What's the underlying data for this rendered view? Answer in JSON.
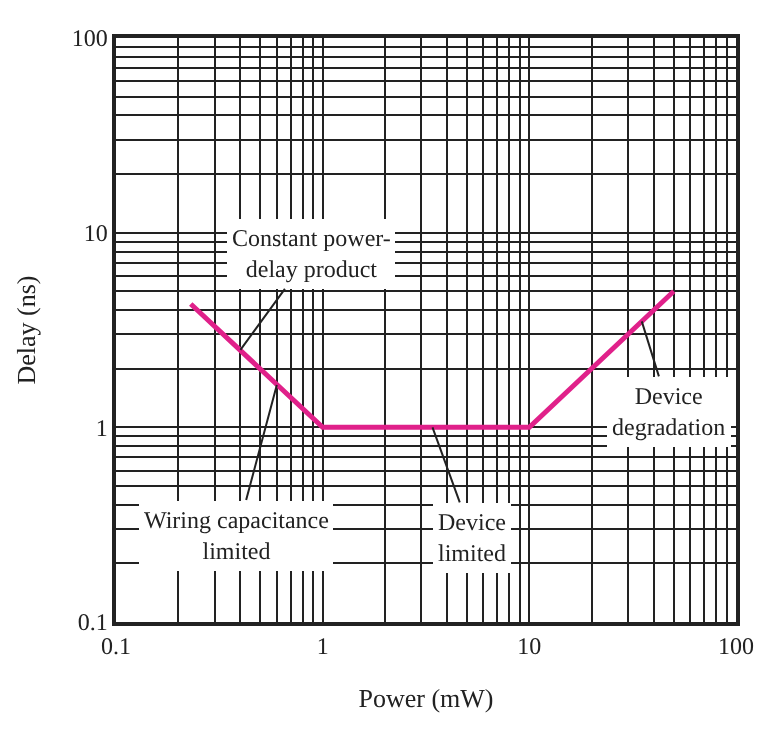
{
  "chart_data": {
    "type": "line",
    "xlabel": "Power (mW)",
    "ylabel": "Delay (ns)",
    "x": [
      0.23,
      1,
      10,
      50
    ],
    "series": [
      {
        "color": "#e0218a",
        "values": [
          4.3,
          1,
          1,
          5
        ]
      }
    ],
    "log": "xy",
    "xlim": [
      0.1,
      100
    ],
    "ylim": [
      0.1,
      100
    ],
    "xticks": [
      0.1,
      1,
      10,
      100
    ],
    "yticks": [
      0.1,
      1,
      10,
      100
    ],
    "grid": true,
    "marker": "none",
    "line_style": "solid",
    "annotations": [
      {
        "text": "Constant power-\ndelay product",
        "x": 0.4,
        "y": 2.5
      },
      {
        "text": "Wiring capacitance\nlimited",
        "x": 0.6,
        "y": 1.65
      },
      {
        "text": "Device\nlimited",
        "x": 3.4,
        "y": 1
      },
      {
        "text": "Device\ndegradation",
        "x": 35,
        "y": 3.5
      }
    ]
  }
}
